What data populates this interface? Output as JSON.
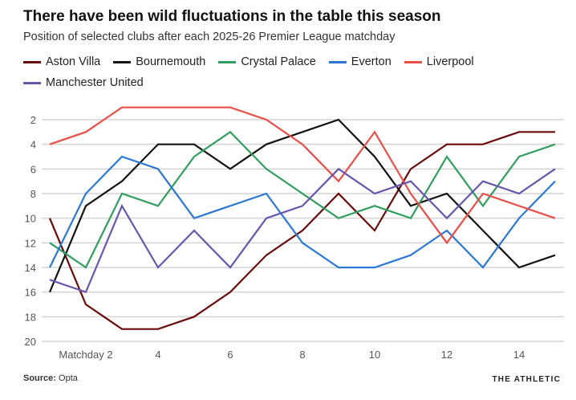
{
  "chart_data": {
    "type": "line",
    "title": "There have been wild fluctuations in the table this season",
    "subtitle": "Position of selected clubs after each 2025-26 Premier League matchday",
    "x": [
      1,
      2,
      3,
      4,
      5,
      6,
      7,
      8,
      9,
      10,
      11,
      12,
      13,
      14,
      15
    ],
    "x_tick_labels": [
      {
        "x": 2,
        "label": "Matchday 2"
      },
      {
        "x": 4,
        "label": "4"
      },
      {
        "x": 6,
        "label": "6"
      },
      {
        "x": 8,
        "label": "8"
      },
      {
        "x": 10,
        "label": "10"
      },
      {
        "x": 12,
        "label": "12"
      },
      {
        "x": 14,
        "label": "14"
      }
    ],
    "y_ticks": [
      2,
      4,
      6,
      8,
      10,
      12,
      14,
      16,
      18,
      20
    ],
    "ylim": [
      1,
      20
    ],
    "y_inverted": true,
    "grid": "horizontal",
    "legend_placement": "top",
    "series": [
      {
        "name": "Aston Villa",
        "color": "#6b0a0a",
        "values": [
          10,
          17,
          19,
          19,
          18,
          16,
          13,
          11,
          8,
          11,
          6,
          4,
          4,
          3,
          3
        ]
      },
      {
        "name": "Bournemouth",
        "color": "#121212",
        "values": [
          16,
          9,
          7,
          4,
          4,
          6,
          4,
          3,
          2,
          5,
          9,
          8,
          11,
          14,
          13
        ]
      },
      {
        "name": "Crystal Palace",
        "color": "#2f9e5e",
        "values": [
          12,
          14,
          8,
          9,
          5,
          3,
          6,
          8,
          10,
          9,
          10,
          5,
          9,
          5,
          4
        ]
      },
      {
        "name": "Everton",
        "color": "#2a78d6",
        "values": [
          14,
          8,
          5,
          6,
          10,
          9,
          8,
          12,
          14,
          14,
          13,
          11,
          14,
          10,
          7
        ]
      },
      {
        "name": "Liverpool",
        "color": "#ea4e47",
        "values": [
          4,
          3,
          1,
          1,
          1,
          1,
          2,
          4,
          7,
          3,
          8,
          12,
          8,
          9,
          10
        ]
      },
      {
        "name": "Manchester United",
        "color": "#6a55ae",
        "values": [
          15,
          16,
          9,
          14,
          11,
          14,
          10,
          9,
          6,
          8,
          7,
          10,
          7,
          8,
          6
        ]
      }
    ]
  },
  "footer": {
    "source_label": "Source:",
    "source": "Opta",
    "brand": "THE ATHLETIC"
  }
}
